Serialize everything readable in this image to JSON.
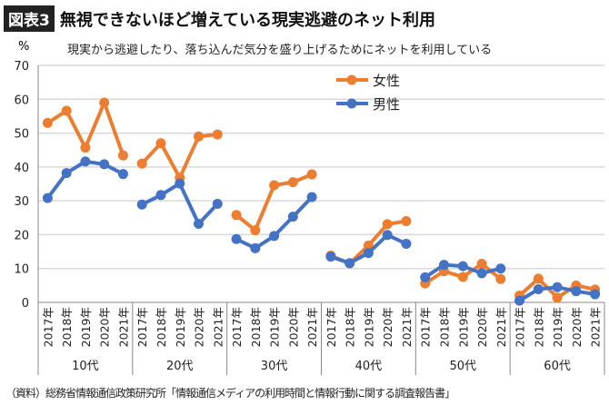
{
  "header": {
    "badge": "図表3",
    "title": "無視できないほど増えている現実逃避のネット利用"
  },
  "unit": "%",
  "subtitle": "現実から逃避したり、落ち込んだ気分を盛り上げるためにネットを利用している",
  "source": "（資料）総務省情報通信政策研究所「情報通信メディアの利用時間と情報行動に関する調査報告書」",
  "chart_data": {
    "type": "line",
    "ylim": [
      0,
      70
    ],
    "yticks": [
      0,
      10,
      20,
      30,
      40,
      50,
      60,
      70
    ],
    "grid": true,
    "legend": "top-center",
    "groups": [
      "10代",
      "20代",
      "30代",
      "40代",
      "50代",
      "60代"
    ],
    "years": [
      "2017年",
      "2018年",
      "2019年",
      "2020年",
      "2021年"
    ],
    "series": [
      {
        "name": "女性",
        "color": "#ED7D31",
        "values": [
          [
            53.0,
            56.6,
            45.7,
            59.0,
            43.4
          ],
          [
            41.0,
            47.0,
            36.8,
            49.0,
            49.6
          ],
          [
            25.8,
            21.3,
            34.6,
            35.5,
            37.8
          ],
          [
            13.8,
            11.5,
            16.8,
            23.1,
            24.0
          ],
          [
            5.6,
            9.2,
            7.5,
            11.4,
            6.9
          ],
          [
            2.0,
            7.0,
            1.4,
            5.0,
            3.8
          ]
        ]
      },
      {
        "name": "男性",
        "color": "#4472C4",
        "values": [
          [
            30.8,
            38.2,
            41.6,
            40.8,
            37.9
          ],
          [
            28.9,
            31.7,
            35.1,
            23.2,
            29.1
          ],
          [
            18.7,
            16.0,
            19.6,
            25.3,
            31.1
          ],
          [
            13.5,
            11.6,
            14.6,
            19.9,
            17.3
          ],
          [
            7.4,
            11.1,
            10.7,
            8.6,
            10.0
          ],
          [
            0.5,
            3.9,
            4.5,
            3.3,
            2.4
          ]
        ]
      }
    ]
  }
}
